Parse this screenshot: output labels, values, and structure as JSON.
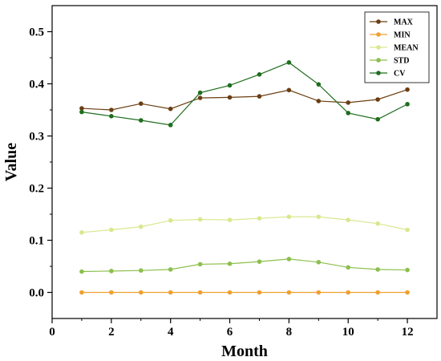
{
  "chart_data": {
    "type": "line",
    "xlabel": "Month",
    "ylabel": "Value",
    "xlim": [
      0,
      13
    ],
    "ylim": [
      -0.05,
      0.55
    ],
    "x_ticks": [
      0,
      2,
      4,
      6,
      8,
      10,
      12
    ],
    "y_ticks": [
      0.0,
      0.1,
      0.2,
      0.3,
      0.4,
      0.5
    ],
    "grid": false,
    "legend_position": "top-right",
    "x": [
      1,
      2,
      3,
      4,
      5,
      6,
      7,
      8,
      9,
      10,
      11,
      12
    ],
    "series": [
      {
        "name": "MAX",
        "color": "#6b3e12",
        "values": [
          0.353,
          0.35,
          0.362,
          0.352,
          0.373,
          0.374,
          0.376,
          0.388,
          0.367,
          0.364,
          0.37,
          0.389
        ]
      },
      {
        "name": "MIN",
        "color": "#f0a030",
        "values": [
          0.0,
          0.0,
          0.0,
          0.0,
          0.0,
          0.0,
          0.0,
          0.0,
          0.0,
          0.0,
          0.0,
          0.0
        ]
      },
      {
        "name": "MEAN",
        "color": "#d8e890",
        "values": [
          0.115,
          0.12,
          0.126,
          0.138,
          0.14,
          0.139,
          0.142,
          0.145,
          0.145,
          0.139,
          0.132,
          0.12
        ]
      },
      {
        "name": "STD",
        "color": "#8cbf4c",
        "values": [
          0.04,
          0.041,
          0.042,
          0.044,
          0.054,
          0.055,
          0.059,
          0.064,
          0.058,
          0.048,
          0.044,
          0.043
        ]
      },
      {
        "name": "CV",
        "color": "#1e6e1e",
        "values": [
          0.346,
          0.338,
          0.33,
          0.321,
          0.383,
          0.397,
          0.418,
          0.441,
          0.399,
          0.344,
          0.332,
          0.361
        ]
      }
    ]
  }
}
